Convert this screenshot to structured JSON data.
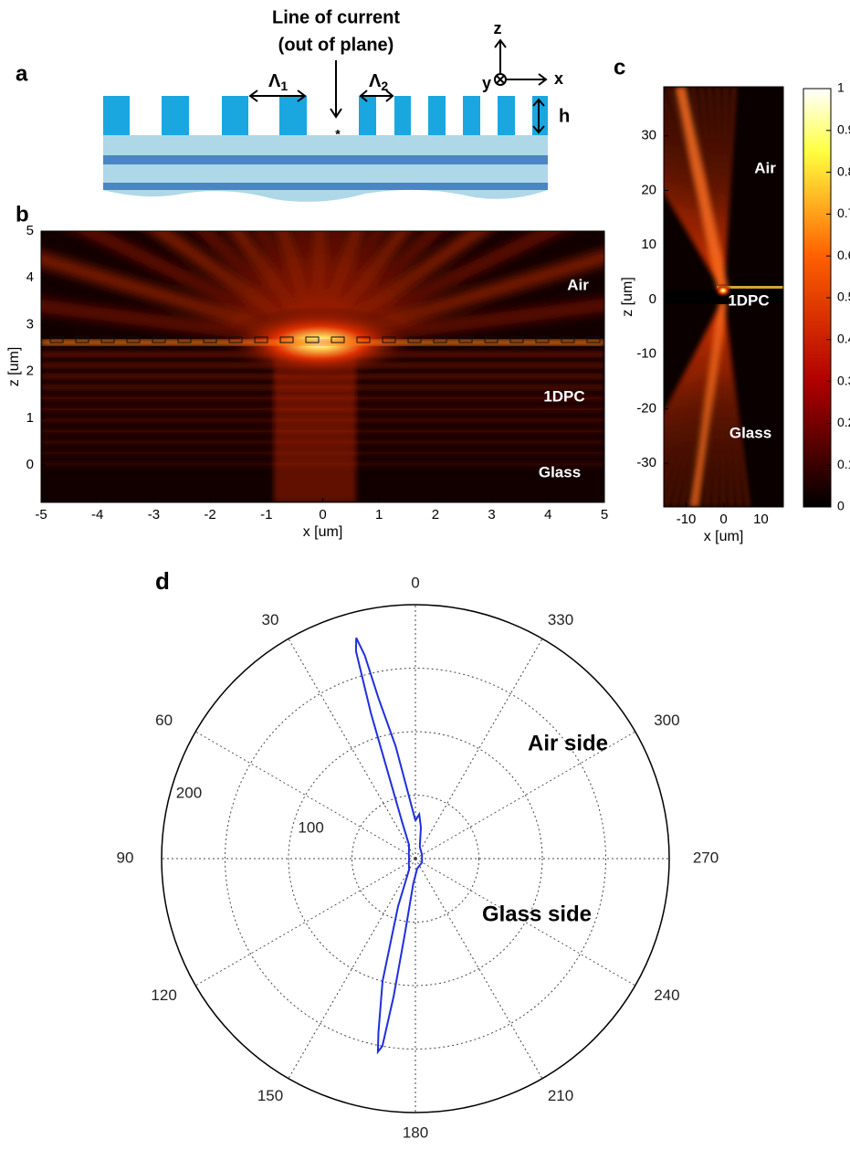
{
  "panel_labels": [
    "a",
    "b",
    "c",
    "d"
  ],
  "diagram_a": {
    "title_line1": "Line of current",
    "title_line2": "(out of plane)",
    "period1": "Λ",
    "period1_sub": "1",
    "period2": "Λ",
    "period2_sub": "2",
    "height": "h",
    "source_mark": "*",
    "axis_z": "z",
    "axis_x": "x",
    "axis_y": "y"
  },
  "chart_data": [
    {
      "type": "heatmap",
      "xlabel": "x [um]",
      "ylabel": "z [um]",
      "xlim": [
        -5,
        5
      ],
      "ylim": [
        -0.8,
        5
      ],
      "xticks": [
        -5,
        -4,
        -3,
        -2,
        -1,
        0,
        1,
        2,
        3,
        4,
        5
      ],
      "yticks": [
        0,
        1,
        2,
        3,
        4,
        5
      ],
      "annotations": [
        "Air",
        "1DPC",
        "Glass"
      ]
    },
    {
      "type": "heatmap",
      "xlabel": "x [um]",
      "ylabel": "z [um]",
      "xlim": [
        -16,
        16
      ],
      "ylim": [
        -38,
        39
      ],
      "xticks": [
        -10,
        0,
        10
      ],
      "yticks": [
        -30,
        -20,
        -10,
        0,
        10,
        20,
        30
      ],
      "annotations": [
        "Air",
        "1DPC",
        "Glass"
      ],
      "colorbar": {
        "lim": [
          0,
          1
        ],
        "ticks": [
          0,
          0.1,
          0.2,
          0.3,
          0.4,
          0.5,
          0.6,
          0.7,
          0.8,
          0.9,
          1
        ]
      }
    },
    {
      "type": "polar",
      "color": "#1f2fdc",
      "theta": [
        0,
        10,
        13,
        14,
        15,
        16,
        17,
        18,
        20,
        25,
        40,
        60,
        90,
        120,
        150,
        160,
        165,
        168,
        169,
        170,
        171,
        172,
        175,
        190,
        240,
        300,
        340,
        350,
        355,
        360
      ],
      "r": [
        30,
        90,
        130,
        165,
        180,
        170,
        120,
        60,
        30,
        12,
        8,
        6,
        5,
        6,
        10,
        40,
        100,
        140,
        155,
        150,
        110,
        60,
        20,
        8,
        6,
        6,
        10,
        25,
        35,
        30
      ],
      "rlim": [
        0,
        200
      ],
      "rgrid": [
        50,
        100,
        150,
        200
      ],
      "rticks": [
        100,
        200
      ],
      "thetaticks": [
        0,
        30,
        60,
        90,
        120,
        150,
        180,
        210,
        240,
        270,
        300,
        330
      ],
      "annotations": [
        "Air side",
        "Glass side"
      ]
    }
  ]
}
